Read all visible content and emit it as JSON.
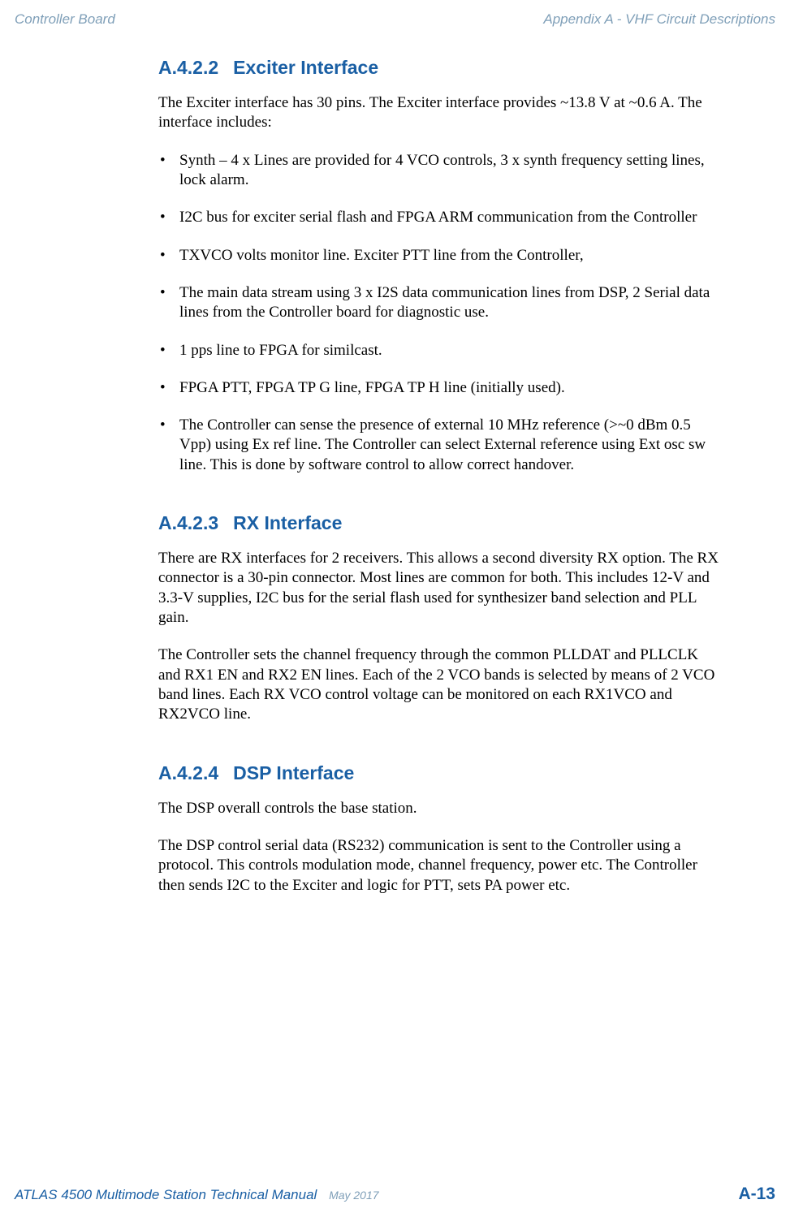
{
  "header": {
    "left": "Controller Board",
    "right": "Appendix A - VHF Circuit Descriptions"
  },
  "sections": [
    {
      "num": "A.4.2.2",
      "title": "Exciter Interface",
      "paras": [
        "The Exciter interface has 30 pins. The Exciter interface provides ~13.8 V at ~0.6 A. The interface includes:"
      ],
      "bullets": [
        "Synth – 4 x Lines are provided for 4 VCO controls, 3 x synth frequency setting lines, lock alarm.",
        "I2C bus for exciter serial flash and FPGA ARM communication from the Controller",
        "TXVCO volts monitor line. Exciter PTT line from the Controller,",
        "The main data stream using 3 x I2S data communication lines from DSP, 2 Serial data lines from the Controller board for diagnostic use.",
        "1 pps line to FPGA for similcast.",
        "FPGA PTT, FPGA TP G line, FPGA TP H line (initially used).",
        "The Controller can sense the presence of external 10 MHz reference (>~0 dBm 0.5 Vpp) using Ex ref line. The Controller can select External reference using Ext osc sw line. This is done by software control to allow correct handover."
      ]
    },
    {
      "num": "A.4.2.3",
      "title": "RX Interface",
      "paras": [
        "There are RX interfaces for 2 receivers. This allows a second diversity RX option. The RX connector is a 30-pin connector. Most lines are common for both. This includes 12-V and 3.3-V supplies, I2C bus for the serial flash used for synthesizer band selection and PLL gain.",
        "The Controller sets the channel frequency through the common PLLDAT and PLLCLK and RX1 EN and RX2 EN lines. Each of the 2 VCO bands is selected by means of 2 VCO band lines. Each RX VCO control voltage can be monitored on each RX1VCO and RX2VCO line."
      ],
      "bullets": []
    },
    {
      "num": "A.4.2.4",
      "title": "DSP Interface",
      "paras": [
        "The DSP overall controls the base station.",
        "The DSP control serial data (RS232) communication is sent to the Controller using a protocol. This controls modulation mode, channel frequency, power etc. The Controller then sends I2C to the Exciter and logic for PTT, sets PA power etc."
      ],
      "bullets": []
    }
  ],
  "footer": {
    "left_title": "ATLAS 4500 Multimode Station Technical Manual",
    "left_date": "May 2017",
    "right": "A-13"
  },
  "colors": {
    "heading": "#1a5fa4",
    "header_grey": "#7f9fb8",
    "body": "#000000",
    "background": "#ffffff"
  }
}
